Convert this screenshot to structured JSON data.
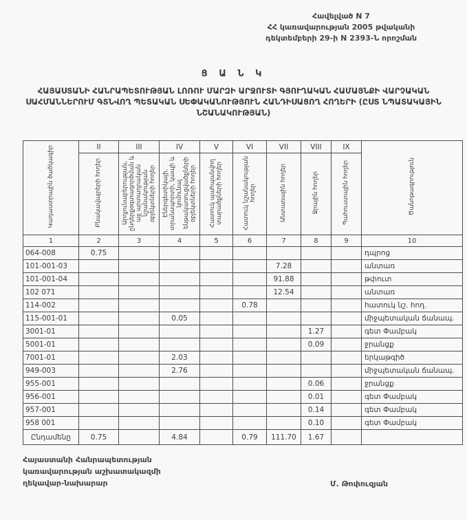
{
  "annex": {
    "line1": "Հավելված N 7",
    "line2": "ՀՀ կառավարության 2005 թվականի",
    "line3": "դեկտեմբերի 29-ի N 2393-Ն որոշման"
  },
  "title": {
    "heading": "Ց Ա Ն Կ",
    "subtitle": "ՀԱՅԱՍՏԱՆԻ ՀԱՆՐԱՊԵՏՈՒԹՅԱՆ ԼՈՌՈՒ ՄԱՐԶԻ ԱՐՋՈՒՏԻ ԳՅՈՒՂԱԿԱՆ ՀԱՄԱՅՆՔԻ ՎԱՐՉԱԿԱՆ ՍԱՀՄԱՆՆԵՐՈՒՄ ԳՏՆՎՈՂ ՊԵՏԱԿԱՆ ՍԵՓԱԿԱՆՈՒԹՅՈՒՆ ՀԱՆԴԻՍԱՑՈՂ ՀՈՂԵՐԻ (ԸՍՏ ՆՊԱՏԱԿԱՅԻՆ ՆՇԱՆԱԿՈՒԹՅԱՆ)"
  },
  "table": {
    "col1_header": "Կադաստրային ծածկագիր",
    "col10_header": "Ծանոթագրություն",
    "roman_numerals": [
      "II",
      "III",
      "IV",
      "V",
      "VI",
      "VII",
      "VIII",
      "IX"
    ],
    "rotated_headers": [
      "Բնակավայրերի հողեր",
      "Արդյունաբերության, ընդերքօգտագործման և այլ արտադրական նշանակության օբյեկտների հողեր",
      "Էներգետիկայի, տրանսպորտի, կապի և կոմունալ ենթակառուցվածքների օբյեկտների հողեր",
      "Հատուկ պահպանվող տարածքների հողեր",
      "Հատուկ նշանակության հողեր",
      "Անտառային հողեր",
      "Ջրային հողեր",
      "Պահուստային հողեր"
    ],
    "column_numbers": [
      "1",
      "2",
      "3",
      "4",
      "5",
      "6",
      "7",
      "8",
      "9",
      "10"
    ],
    "rows": [
      {
        "code": "064-008",
        "values": [
          "0.75",
          "",
          "",
          "",
          "",
          "",
          "",
          ""
        ],
        "note": "դպրոց"
      },
      {
        "code": "101-001-03",
        "values": [
          "",
          "",
          "",
          "",
          "",
          "7.28",
          "",
          ""
        ],
        "note": "անտառ"
      },
      {
        "code": "101-001-04",
        "values": [
          "",
          "",
          "",
          "",
          "",
          "91.88",
          "",
          ""
        ],
        "note": "թփուտ"
      },
      {
        "code": "102 071",
        "values": [
          "",
          "",
          "",
          "",
          "",
          "12.54",
          "",
          ""
        ],
        "note": "անտառ"
      },
      {
        "code": "114-002",
        "values": [
          "",
          "",
          "",
          "",
          "0.78",
          "",
          "",
          ""
        ],
        "note": "հատուկ նշ. հող."
      },
      {
        "code": "115-001-01",
        "values": [
          "",
          "",
          "0.05",
          "",
          "",
          "",
          "",
          ""
        ],
        "note": "միջպետական ճանապ."
      },
      {
        "code": "3001-01",
        "values": [
          "",
          "",
          "",
          "",
          "",
          "",
          "1.27",
          ""
        ],
        "note": "գետ Փամբակ"
      },
      {
        "code": "5001-01",
        "values": [
          "",
          "",
          "",
          "",
          "",
          "",
          "0.09",
          ""
        ],
        "note": "ջրանցք"
      },
      {
        "code": "7001-01",
        "values": [
          "",
          "",
          "2.03",
          "",
          "",
          "",
          "",
          ""
        ],
        "note": "երկաթգիծ"
      },
      {
        "code": "949-003",
        "values": [
          "",
          "",
          "2.76",
          "",
          "",
          "",
          "",
          ""
        ],
        "note": "միջպետական ճանապ."
      },
      {
        "code": "955-001",
        "values": [
          "",
          "",
          "",
          "",
          "",
          "",
          "0.06",
          ""
        ],
        "note": "ջրանցք"
      },
      {
        "code": "956-001",
        "values": [
          "",
          "",
          "",
          "",
          "",
          "",
          "0.01",
          ""
        ],
        "note": "գետ Փամբակ"
      },
      {
        "code": "957-001",
        "values": [
          "",
          "",
          "",
          "",
          "",
          "",
          "0.14",
          ""
        ],
        "note": "գետ Փամբակ"
      },
      {
        "code": "958 001",
        "values": [
          "",
          "",
          "",
          "",
          "",
          "",
          "0.10",
          ""
        ],
        "note": "գետ Փամբակ"
      }
    ],
    "total": {
      "label": "Ընդամենը",
      "values": [
        "0.75",
        "",
        "4.84",
        "",
        "0.79",
        "111.70",
        "1.67",
        ""
      ],
      "note": ""
    }
  },
  "footer": {
    "line1": "Հայաստանի Հանրապետության",
    "line2": "կառավարության աշխատակազմի",
    "line3": "ղեկավար-նախարար",
    "signature": "Մ. Թոփուզյան"
  }
}
